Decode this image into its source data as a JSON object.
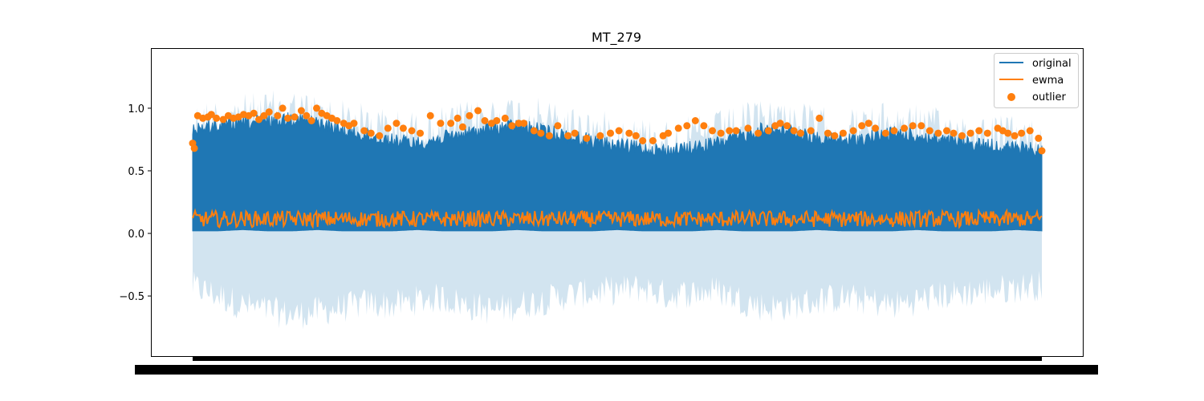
{
  "chart_data": {
    "type": "line",
    "title": "MT_279",
    "xlabel": "",
    "ylabel": "",
    "ylim": [
      -0.98,
      1.48
    ],
    "yticks": [
      -0.5,
      0.0,
      0.5,
      1.0
    ],
    "ytick_labels": [
      "−0.5",
      "0.0",
      "0.5",
      "1.0"
    ],
    "x_tick_labels_overlapping": true,
    "legend_position": "upper right",
    "grid": false,
    "series": [
      {
        "name": "original",
        "color": "#1f77b4",
        "envelope_upper": [
          0.9,
          0.92,
          0.94,
          0.96,
          0.98,
          0.94,
          0.88,
          0.84,
          0.8,
          0.78,
          0.82,
          0.86,
          0.9,
          0.92,
          0.88,
          0.84,
          0.8,
          0.76,
          0.74,
          0.72,
          0.74,
          0.78,
          0.84,
          0.9,
          0.88,
          0.82,
          0.8,
          0.82,
          0.86,
          0.84,
          0.8,
          0.78,
          0.76,
          0.74,
          0.72
        ],
        "envelope_lower": [
          0.02,
          0.02,
          0.03,
          0.02,
          0.02,
          0.03,
          0.02,
          0.02,
          0.02,
          0.03,
          0.02,
          0.02,
          0.02,
          0.03,
          0.02,
          0.02,
          0.02,
          0.03,
          0.02,
          0.02,
          0.02,
          0.03,
          0.02,
          0.02,
          0.02,
          0.03,
          0.02,
          0.02,
          0.02,
          0.03,
          0.02,
          0.02,
          0.02,
          0.03,
          0.02
        ]
      },
      {
        "name": "ewma",
        "color": "#ff7f0e",
        "band": [
          0.05,
          0.18
        ]
      },
      {
        "name": "outlier",
        "color": "#ff7f0e",
        "points": [
          [
            0.0,
            0.72
          ],
          [
            0.2,
            0.68
          ],
          [
            0.6,
            0.94
          ],
          [
            1.2,
            0.92
          ],
          [
            1.8,
            0.93
          ],
          [
            2.2,
            0.95
          ],
          [
            2.8,
            0.92
          ],
          [
            3.6,
            0.91
          ],
          [
            4.2,
            0.94
          ],
          [
            4.8,
            0.92
          ],
          [
            5.4,
            0.93
          ],
          [
            6.0,
            0.95
          ],
          [
            6.6,
            0.94
          ],
          [
            7.2,
            0.96
          ],
          [
            7.8,
            0.91
          ],
          [
            8.4,
            0.94
          ],
          [
            9.0,
            0.97
          ],
          [
            10.0,
            0.94
          ],
          [
            10.6,
            1.0
          ],
          [
            11.2,
            0.92
          ],
          [
            12.0,
            0.93
          ],
          [
            12.8,
            0.98
          ],
          [
            13.4,
            0.94
          ],
          [
            14.0,
            0.9
          ],
          [
            14.6,
            1.0
          ],
          [
            15.2,
            0.96
          ],
          [
            15.8,
            0.94
          ],
          [
            16.4,
            0.92
          ],
          [
            17.0,
            0.9
          ],
          [
            17.8,
            0.88
          ],
          [
            18.4,
            0.86
          ],
          [
            19.0,
            0.88
          ],
          [
            20.2,
            0.82
          ],
          [
            21.0,
            0.8
          ],
          [
            22.0,
            0.78
          ],
          [
            23.0,
            0.84
          ],
          [
            24.0,
            0.88
          ],
          [
            24.8,
            0.84
          ],
          [
            25.8,
            0.82
          ],
          [
            26.8,
            0.8
          ],
          [
            28.0,
            0.94
          ],
          [
            29.2,
            0.88
          ],
          [
            30.4,
            0.88
          ],
          [
            31.2,
            0.92
          ],
          [
            31.8,
            0.85
          ],
          [
            32.6,
            0.94
          ],
          [
            33.6,
            0.98
          ],
          [
            34.4,
            0.9
          ],
          [
            35.2,
            0.88
          ],
          [
            35.8,
            0.9
          ],
          [
            36.8,
            0.92
          ],
          [
            37.6,
            0.86
          ],
          [
            38.4,
            0.88
          ],
          [
            39.0,
            0.88
          ],
          [
            40.2,
            0.82
          ],
          [
            41.0,
            0.8
          ],
          [
            42.0,
            0.78
          ],
          [
            43.0,
            0.86
          ],
          [
            44.2,
            0.78
          ],
          [
            45.0,
            0.8
          ],
          [
            46.4,
            0.76
          ],
          [
            48.0,
            0.78
          ],
          [
            49.2,
            0.8
          ],
          [
            50.2,
            0.82
          ],
          [
            51.4,
            0.8
          ],
          [
            52.2,
            0.78
          ],
          [
            53.0,
            0.74
          ],
          [
            54.2,
            0.74
          ],
          [
            55.4,
            0.78
          ],
          [
            56.0,
            0.8
          ],
          [
            57.2,
            0.84
          ],
          [
            58.2,
            0.86
          ],
          [
            59.2,
            0.9
          ],
          [
            60.2,
            0.86
          ],
          [
            61.2,
            0.82
          ],
          [
            62.2,
            0.8
          ],
          [
            63.2,
            0.82
          ],
          [
            64.0,
            0.82
          ],
          [
            65.4,
            0.84
          ],
          [
            66.6,
            0.8
          ],
          [
            67.8,
            0.82
          ],
          [
            68.6,
            0.86
          ],
          [
            69.2,
            0.88
          ],
          [
            70.0,
            0.86
          ],
          [
            70.8,
            0.82
          ],
          [
            71.6,
            0.8
          ],
          [
            72.8,
            0.82
          ],
          [
            73.8,
            0.92
          ],
          [
            74.8,
            0.8
          ],
          [
            75.6,
            0.78
          ],
          [
            76.6,
            0.8
          ],
          [
            77.8,
            0.82
          ],
          [
            78.8,
            0.86
          ],
          [
            79.6,
            0.88
          ],
          [
            80.4,
            0.84
          ],
          [
            81.6,
            0.8
          ],
          [
            82.6,
            0.82
          ],
          [
            83.8,
            0.84
          ],
          [
            84.8,
            0.86
          ],
          [
            85.8,
            0.86
          ],
          [
            86.8,
            0.82
          ],
          [
            87.8,
            0.8
          ],
          [
            88.8,
            0.82
          ],
          [
            89.6,
            0.8
          ],
          [
            90.6,
            0.78
          ],
          [
            91.6,
            0.8
          ],
          [
            92.6,
            0.82
          ],
          [
            93.6,
            0.8
          ],
          [
            94.8,
            0.84
          ],
          [
            95.4,
            0.82
          ],
          [
            96.0,
            0.8
          ],
          [
            96.8,
            0.78
          ],
          [
            97.6,
            0.8
          ],
          [
            98.6,
            0.82
          ],
          [
            99.6,
            0.76
          ],
          [
            100.0,
            0.66
          ]
        ]
      }
    ],
    "confidence_band": {
      "color": "#1f77b4",
      "lower_envelope": [
        -0.55,
        -0.62,
        -0.7,
        -0.74,
        -0.78,
        -0.75,
        -0.72,
        -0.68,
        -0.7,
        -0.66,
        -0.64,
        -0.7,
        -0.74,
        -0.7,
        -0.66,
        -0.62,
        -0.6,
        -0.58,
        -0.56,
        -0.62,
        -0.6,
        -0.58,
        -0.66,
        -0.72,
        -0.7,
        -0.66,
        -0.64,
        -0.66,
        -0.7,
        -0.66,
        -0.62,
        -0.6,
        -0.58,
        -0.56,
        -0.54
      ],
      "upper_envelope": [
        1.05,
        1.1,
        1.12,
        1.14,
        1.16,
        1.12,
        1.08,
        1.04,
        1.0,
        0.98,
        1.02,
        1.06,
        1.1,
        1.12,
        1.08,
        1.04,
        1.0,
        0.96,
        0.94,
        0.92,
        0.94,
        0.98,
        1.04,
        1.1,
        1.08,
        1.02,
        1.0,
        1.02,
        1.06,
        1.04,
        1.0,
        0.98,
        0.96,
        0.94,
        0.92
      ]
    }
  }
}
